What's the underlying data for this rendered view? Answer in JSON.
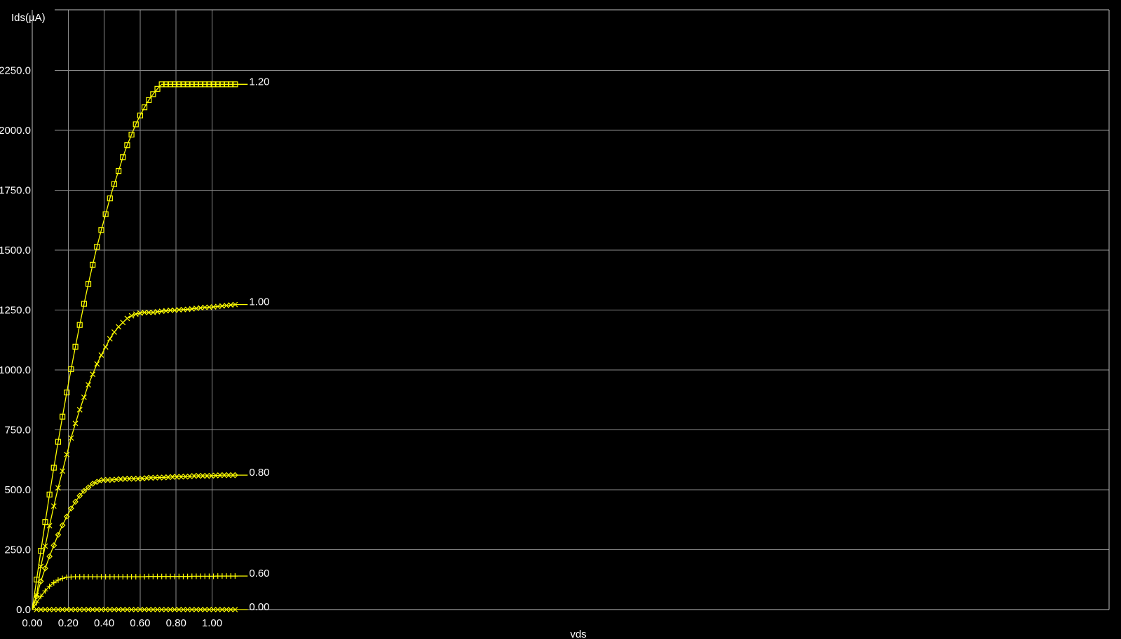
{
  "chart_data": {
    "type": "line",
    "xlabel": "vds",
    "ylabel": "Ids(µA)",
    "xlim": [
      0.0,
      1.18
    ],
    "ylim": [
      0.0,
      2250.0
    ],
    "x_ticks": [
      "0.00",
      "0.20",
      "0.40",
      "0.60",
      "0.80",
      "1.00"
    ],
    "y_ticks": [
      "0.0",
      "250.0",
      "500.0",
      "750.0",
      "1000.0",
      "1250.0",
      "1500.0",
      "1750.0",
      "2000.0",
      "2250.0"
    ],
    "grid": true,
    "series_color": "#ffff00",
    "x": [
      0.0,
      0.024,
      0.048,
      0.072,
      0.096,
      0.12,
      0.144,
      0.168,
      0.192,
      0.216,
      0.24,
      0.264,
      0.288,
      0.312,
      0.336,
      0.36,
      0.384,
      0.408,
      0.432,
      0.456,
      0.48,
      0.504,
      0.528,
      0.552,
      0.576,
      0.6,
      0.624,
      0.648,
      0.672,
      0.696,
      0.72,
      0.744,
      0.768,
      0.792,
      0.816,
      0.84,
      0.864,
      0.888,
      0.912,
      0.936,
      0.96,
      0.984,
      1.008,
      1.032,
      1.056,
      1.08,
      1.104,
      1.128
    ],
    "series": [
      {
        "name": "1.20",
        "marker": "square",
        "values": [
          0,
          125,
          245,
          365,
          480,
          592,
          700,
          805,
          906,
          1003,
          1097,
          1188,
          1276,
          1359,
          1439,
          1514,
          1584,
          1650,
          1716,
          1776,
          1830,
          1888,
          1938,
          1982,
          2025,
          2062,
          2096,
          2126,
          2151,
          2173,
          2192,
          2192,
          2192,
          2192,
          2192,
          2192,
          2192,
          2192,
          2192,
          2192,
          2192,
          2192,
          2192,
          2192,
          2192,
          2192,
          2192,
          2192
        ]
      },
      {
        "name": "1.00",
        "marker": "x",
        "values": [
          0,
          60,
          180,
          265,
          350,
          432,
          508,
          578,
          647,
          716,
          777,
          834,
          886,
          938,
          982,
          1025,
          1062,
          1096,
          1130,
          1158,
          1180,
          1198,
          1215,
          1226,
          1233,
          1237,
          1240,
          1240,
          1240,
          1243,
          1245,
          1247,
          1249,
          1249,
          1251,
          1252,
          1253,
          1255,
          1257,
          1259,
          1261,
          1262,
          1263,
          1265,
          1267,
          1269,
          1271,
          1273
        ]
      },
      {
        "name": "0.80",
        "marker": "diamond",
        "values": [
          0,
          55,
          118,
          172,
          222,
          268,
          312,
          352,
          388,
          422,
          450,
          475,
          495,
          510,
          525,
          533,
          540,
          541,
          541,
          542,
          544,
          545,
          546,
          546,
          546,
          546,
          548,
          550,
          550,
          551,
          551,
          552,
          553,
          554,
          554,
          555,
          555,
          557,
          558,
          558,
          558,
          558,
          559,
          560,
          561,
          561,
          561,
          561
        ]
      },
      {
        "name": "0.60",
        "marker": "plus",
        "values": [
          0,
          28,
          55,
          78,
          97,
          112,
          123,
          130,
          135,
          136,
          137,
          137,
          137,
          137,
          137,
          137,
          137,
          137,
          137,
          137,
          137,
          137,
          137,
          137,
          137,
          137,
          137,
          138,
          138,
          138,
          138,
          138,
          138,
          138,
          138,
          138,
          138,
          139,
          139,
          139,
          139,
          139,
          139,
          140,
          140,
          140,
          140,
          140
        ]
      },
      {
        "name": "0.00",
        "marker": "x",
        "values": [
          0,
          0,
          0,
          0,
          0,
          0,
          0,
          0,
          0,
          0,
          0,
          0,
          0,
          0,
          0,
          0,
          0,
          0,
          0,
          0,
          0,
          0,
          0,
          0,
          0,
          0,
          0,
          0,
          0,
          0,
          0,
          0,
          0,
          0,
          0,
          0,
          0,
          0,
          0,
          0,
          0,
          0,
          0,
          0,
          0,
          0,
          0,
          0
        ]
      }
    ]
  }
}
